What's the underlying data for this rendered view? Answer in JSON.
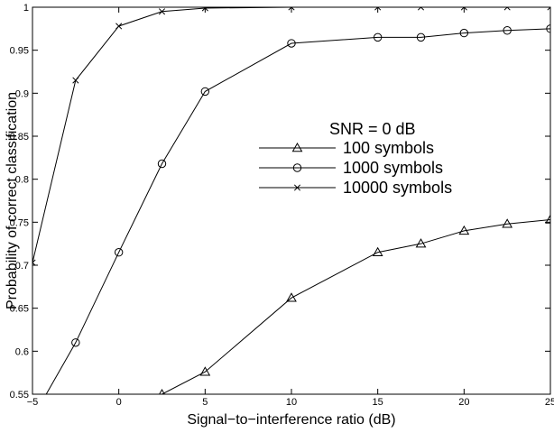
{
  "chart_data": {
    "type": "line",
    "title": "",
    "xlabel": "Signal−to−interference ratio (dB)",
    "ylabel": "Probability of correct classification",
    "xlim": [
      -5,
      25
    ],
    "ylim": [
      0.55,
      1.0
    ],
    "x_ticks": [
      -5,
      0,
      5,
      10,
      15,
      20,
      25
    ],
    "y_ticks": [
      0.55,
      0.6,
      0.65,
      0.7,
      0.75,
      0.8,
      0.85,
      0.9,
      0.95,
      1.0
    ],
    "x_tick_labels": [
      "−5",
      "0",
      "5",
      "10",
      "15",
      "20",
      "25"
    ],
    "y_tick_labels": [
      "0.55",
      "0.6",
      "0.65",
      "0.7",
      "0.75",
      "0.8",
      "0.85",
      "0.9",
      "0.95",
      "1"
    ],
    "grid": false,
    "legend": {
      "title": "SNR = 0 dB",
      "placement": "center-right"
    },
    "series": [
      {
        "name": "100 symbols",
        "marker": "triangle",
        "x": [
          2.5,
          5,
          10,
          15,
          17.5,
          20,
          22.5,
          25
        ],
        "y": [
          0.55,
          0.576,
          0.662,
          0.715,
          0.725,
          0.74,
          0.748,
          0.753
        ]
      },
      {
        "name": "1000 symbols",
        "marker": "circle",
        "x": [
          -5,
          -2.5,
          0,
          2.5,
          5,
          10,
          15,
          17.5,
          20,
          22.5,
          25
        ],
        "y": [
          0.522,
          0.61,
          0.715,
          0.818,
          0.902,
          0.958,
          0.965,
          0.965,
          0.97,
          0.973,
          0.975
        ]
      },
      {
        "name": "10000 symbols",
        "marker": "x",
        "x": [
          -5,
          -2.5,
          0,
          2.5,
          5,
          10,
          15,
          17.5,
          20,
          22.5,
          25
        ],
        "y": [
          0.703,
          0.915,
          0.978,
          0.995,
          0.999,
          1.0,
          1.0,
          1.0,
          1.0,
          1.0,
          1.0
        ]
      }
    ]
  }
}
